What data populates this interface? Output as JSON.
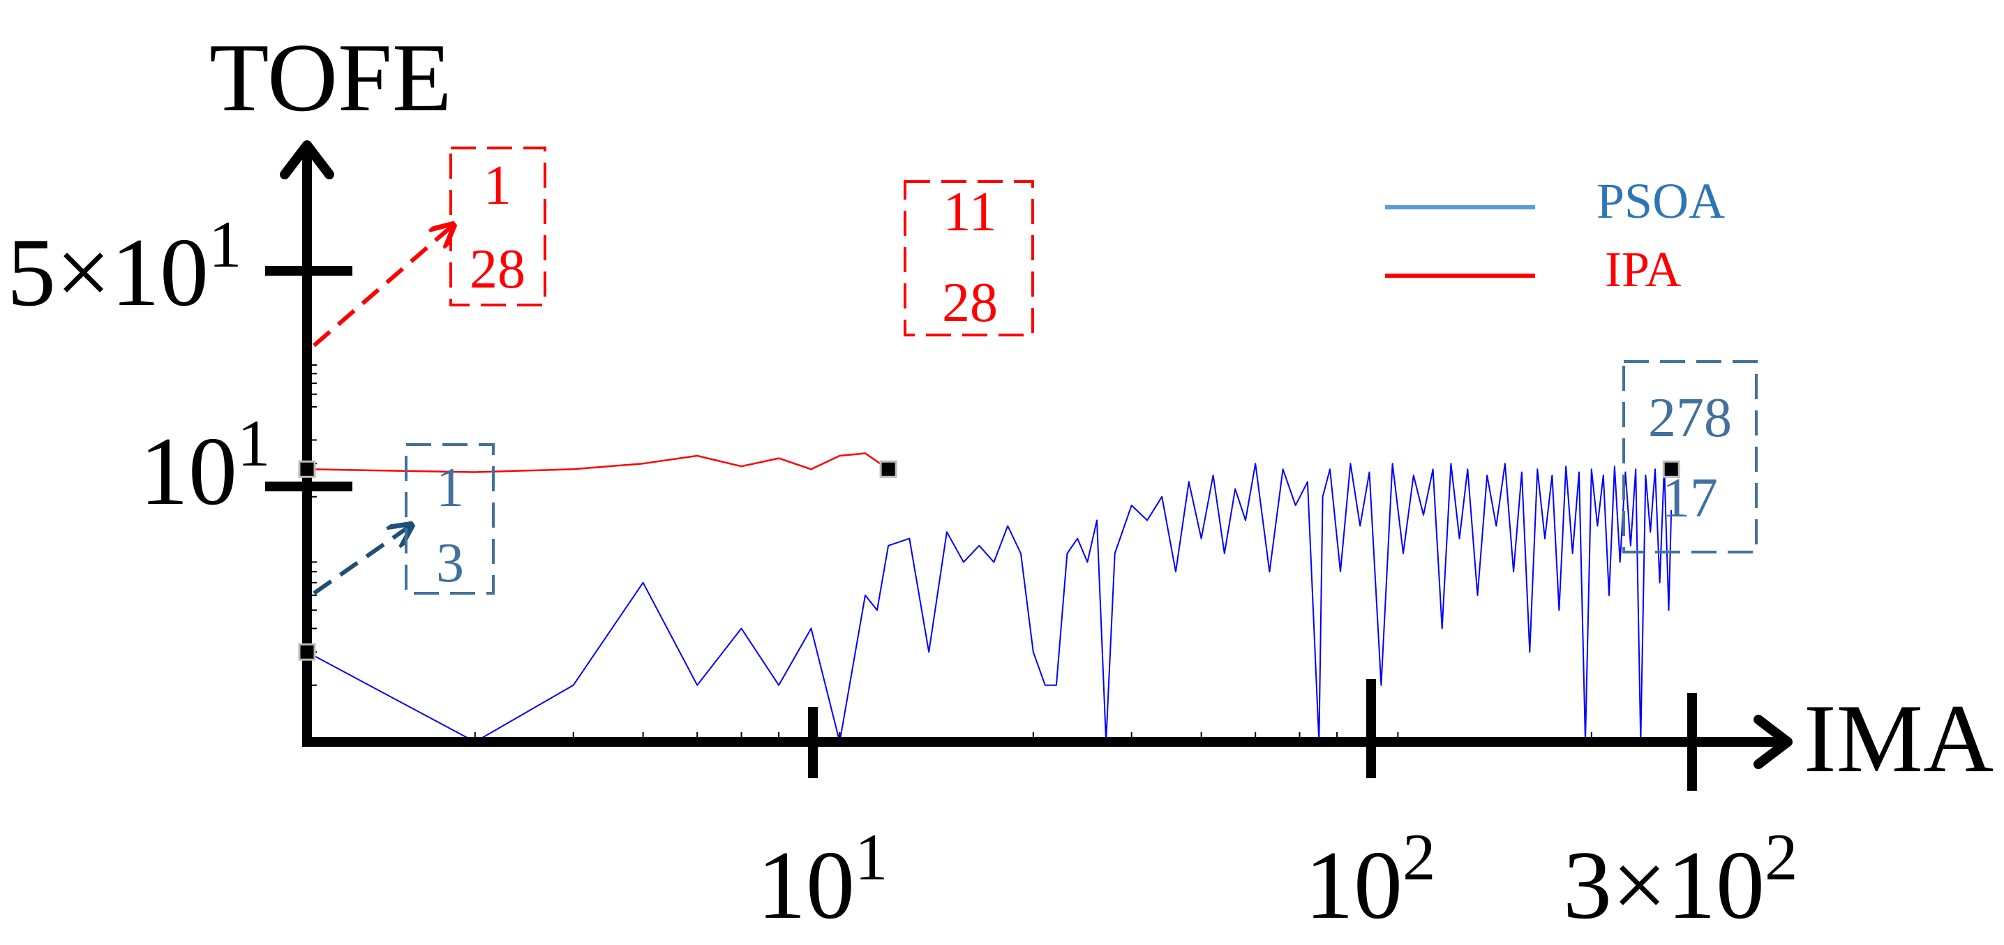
{
  "chart_data": {
    "type": "line",
    "xlabel": "IMA",
    "ylabel": "TOFE",
    "x_scale": "log",
    "y_scale": "log",
    "xlim": [
      1,
      300
    ],
    "ylim": [
      1,
      150
    ],
    "x_ticks": [
      {
        "value": 10,
        "base": "10",
        "exp": "1",
        "coef": ""
      },
      {
        "value": 100,
        "base": "10",
        "exp": "2",
        "coef": ""
      },
      {
        "value": 300,
        "base": "10",
        "exp": "2",
        "coef": "3×"
      }
    ],
    "y_ticks": [
      {
        "value": 10,
        "base": "10",
        "exp": "1",
        "coef": ""
      },
      {
        "value": 50,
        "base": "10",
        "exp": "1",
        "coef": "5×"
      }
    ],
    "colors": {
      "PSOA": "#0000ff",
      "IPA": "#ff0000",
      "legend_psoa": "#5b9bd5",
      "legend_text_psoa": "#2e75b6",
      "annot_blue": "#41719c",
      "arrow_blue": "#1f4e79"
    },
    "legend": {
      "position": "top-right",
      "entries": [
        "PSOA",
        "IPA"
      ]
    },
    "series": [
      {
        "name": "IPA",
        "color": "#ff0000",
        "x": [
          1,
          2,
          3,
          4,
          5,
          6,
          7,
          8,
          9,
          10,
          11
        ],
        "y": [
          28,
          27,
          28,
          30,
          33,
          29,
          32,
          28,
          33,
          34,
          28
        ]
      },
      {
        "name": "PSOA",
        "color": "#0000ff",
        "x": [
          1,
          2,
          3,
          4,
          5,
          6,
          7,
          8,
          9,
          10,
          10.5,
          11,
          12,
          13,
          14,
          15,
          16,
          17,
          18,
          19,
          20,
          21,
          22,
          23,
          24,
          25,
          26,
          27,
          28,
          30,
          32,
          34,
          36,
          38,
          40,
          42,
          44,
          46,
          48,
          50,
          53,
          56,
          59,
          62,
          65,
          66,
          68,
          71,
          74,
          77,
          80,
          84,
          88,
          92,
          96,
          100,
          104,
          108,
          112,
          116,
          120,
          125,
          130,
          135,
          140,
          145,
          150,
          155,
          160,
          165,
          170,
          175,
          180,
          185,
          190,
          195,
          200,
          205,
          210,
          215,
          220,
          225,
          230,
          235,
          240,
          245,
          250,
          255,
          260,
          265,
          270,
          275,
          278
        ],
        "y": [
          3,
          1,
          2,
          7,
          2,
          4,
          2,
          4,
          1,
          6,
          5,
          11,
          12,
          3,
          13,
          9,
          11,
          9,
          14,
          10,
          3,
          2,
          2,
          10,
          12,
          9,
          15,
          1,
          10,
          18,
          15,
          20,
          8,
          24,
          12,
          26,
          10,
          22,
          15,
          30,
          8,
          28,
          18,
          24,
          1,
          20,
          28,
          8,
          30,
          14,
          27,
          2,
          30,
          10,
          26,
          16,
          28,
          4,
          30,
          12,
          28,
          6,
          26,
          14,
          30,
          8,
          27,
          3,
          28,
          12,
          26,
          5,
          29,
          10,
          27,
          1,
          28,
          14,
          26,
          6,
          29,
          9,
          27,
          11,
          28,
          1,
          26,
          13,
          28,
          7,
          29,
          5,
          17
        ]
      }
    ],
    "annotations": [
      {
        "lines": [
          "1",
          "28"
        ],
        "color": "#ff0000"
      },
      {
        "lines": [
          "11",
          "28"
        ],
        "color": "#ff0000"
      },
      {
        "lines": [
          "1",
          "3"
        ],
        "color": "#41719c"
      },
      {
        "lines": [
          "278",
          "17"
        ],
        "color": "#41719c"
      }
    ]
  }
}
